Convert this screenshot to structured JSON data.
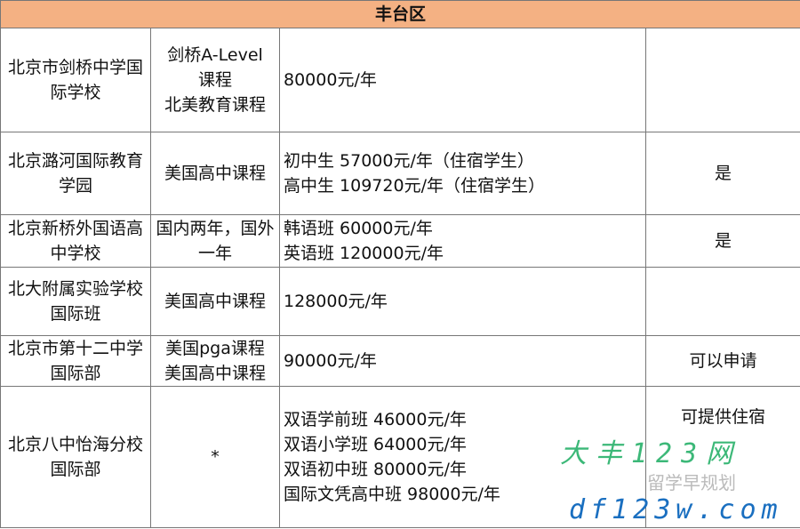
{
  "title": "丰台区",
  "rows": [
    {
      "school": "北京市剑桥中学国际学校",
      "curriculum": [
        "剑桥A-Level",
        "课程",
        "北美教育课程"
      ],
      "fees": [
        "80000元/年"
      ],
      "boarding": ""
    },
    {
      "school": "北京潞河国际教育学园",
      "curriculum": [
        "美国高中课程"
      ],
      "fees": [
        "初中生 57000元/年（住宿学生）",
        "高中生 109720元/年（住宿学生）"
      ],
      "boarding": "是"
    },
    {
      "school": "北京新桥外国语高中学校",
      "curriculum": [
        "国内两年，国外一年"
      ],
      "fees": [
        "韩语班 60000元/年",
        "英语班 120000元/年"
      ],
      "boarding": "是"
    },
    {
      "school": "北大附属实验学校国际班",
      "curriculum": [
        "美国高中课程"
      ],
      "fees": [
        "128000元/年"
      ],
      "boarding": ""
    },
    {
      "school": "北京市第十二中学国际部",
      "curriculum": [
        "美国pga课程",
        "美国高中课程"
      ],
      "fees": [
        "90000元/年"
      ],
      "boarding": "可以申请"
    },
    {
      "school": "北京八中怡海分校国际部",
      "curriculum": [
        "*"
      ],
      "fees": [
        "双语学前班 46000元/年",
        "双语小学班 64000元/年",
        "双语初中班 80000元/年",
        "国际文凭高中班 98000元/年"
      ],
      "boarding": "可提供住宿"
    }
  ],
  "watermark": {
    "line1": "大丰123网",
    "line2": "df123w.com",
    "wechat": "留学早规划"
  }
}
